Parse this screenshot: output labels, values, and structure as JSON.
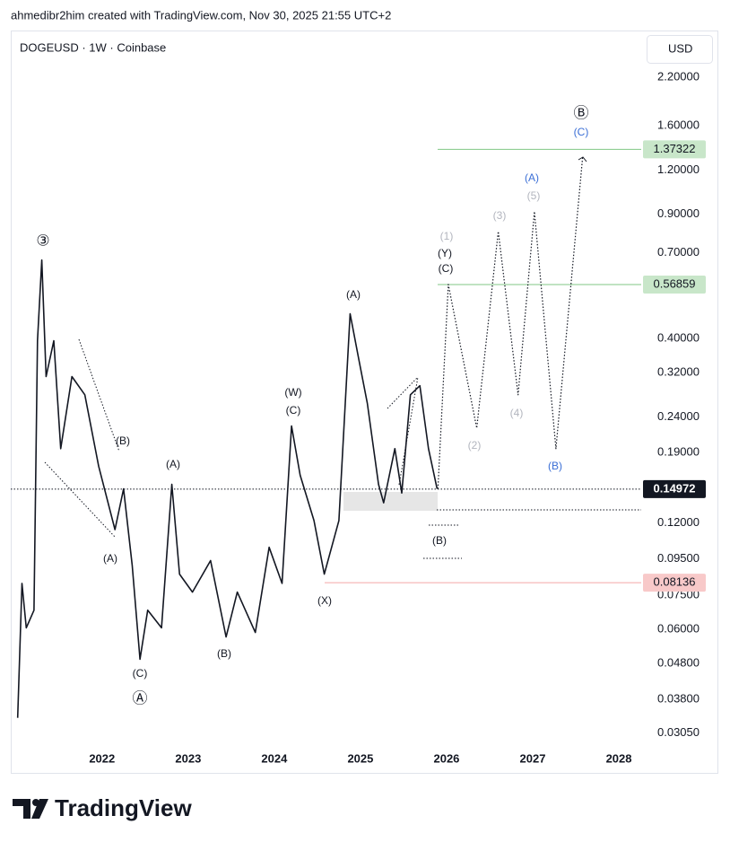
{
  "header": "ahmedibr2him created with TradingView.com, Nov 30, 2025 21:55 UTC+2",
  "brand": "TradingView",
  "chart_data": {
    "type": "line",
    "title": "DOGEUSD · 1W · Coinbase",
    "currency": "USD",
    "log_scale": true,
    "grid": false,
    "xlim": [
      2020.94,
      2028.26
    ],
    "ylim": [
      0.0234,
      2.98
    ],
    "xticks": [
      2022,
      2023,
      2024,
      2025,
      2026,
      2027,
      2028
    ],
    "yticks": [
      {
        "value": 2.2,
        "label": "2.20000"
      },
      {
        "value": 1.6,
        "label": "1.60000"
      },
      {
        "value": 1.2,
        "label": "1.20000"
      },
      {
        "value": 0.9,
        "label": "0.90000"
      },
      {
        "value": 0.7,
        "label": "0.70000"
      },
      {
        "value": 0.4,
        "label": "0.40000"
      },
      {
        "value": 0.32,
        "label": "0.32000"
      },
      {
        "value": 0.24,
        "label": "0.24000"
      },
      {
        "value": 0.19,
        "label": "0.19000"
      },
      {
        "value": 0.12,
        "label": "0.12000"
      },
      {
        "value": 0.095,
        "label": "0.09500"
      },
      {
        "value": 0.075,
        "label": "0.07500"
      },
      {
        "value": 0.06,
        "label": "0.06000"
      },
      {
        "value": 0.048,
        "label": "0.04800"
      },
      {
        "value": 0.038,
        "label": "0.03800"
      },
      {
        "value": 0.0305,
        "label": "0.03050"
      }
    ],
    "series": [
      {
        "color": "#131722",
        "style": "solid",
        "x": [
          2021.02,
          2021.07,
          2021.12,
          2021.21,
          2021.25,
          2021.3,
          2021.35,
          2021.44,
          2021.52,
          2021.65,
          2021.8,
          2021.96,
          2022.15,
          2022.25,
          2022.35,
          2022.44,
          2022.53,
          2022.69,
          2022.81,
          2022.9,
          2023.05,
          2023.26,
          2023.44,
          2023.57,
          2023.78,
          2023.94,
          2024.09,
          2024.2,
          2024.3,
          2024.46,
          2024.58,
          2024.75,
          2024.88,
          2024.98,
          2025.08,
          2025.21,
          2025.27,
          2025.4,
          2025.48,
          2025.58,
          2025.69,
          2025.79,
          2025.89
        ],
        "values": [
          0.0337,
          0.081,
          0.0606,
          0.068,
          0.394,
          0.667,
          0.312,
          0.394,
          0.195,
          0.312,
          0.277,
          0.174,
          0.115,
          0.15,
          0.0912,
          0.0494,
          0.068,
          0.0606,
          0.1545,
          0.086,
          0.0765,
          0.094,
          0.0571,
          0.0765,
          0.0588,
          0.1025,
          0.081,
          0.226,
          0.164,
          0.122,
          0.086,
          0.122,
          0.47,
          0.35,
          0.262,
          0.1545,
          0.137,
          0.195,
          0.146,
          0.277,
          0.294,
          0.195,
          0.15
        ]
      },
      {
        "color": "#131722",
        "style": "dotted",
        "x": [
          2025.9,
          2026.02,
          2026.35,
          2026.6,
          2026.83,
          2027.02,
          2027.27,
          2027.58
        ],
        "values": [
          0.15,
          0.569,
          0.223,
          0.804,
          0.277,
          0.915,
          0.195,
          1.307
        ]
      }
    ],
    "levels": [
      {
        "value": 1.37322,
        "color": "#81c784",
        "badge": "#c8e6c9",
        "text_color": "#131722"
      },
      {
        "value": 0.56859,
        "color": "#81c784",
        "badge": "#c8e6c9",
        "text_color": "#131722"
      },
      {
        "value": 0.14972,
        "color": "#131722",
        "badge": "#131722",
        "text_color": "#ffffff"
      },
      {
        "value": 0.08136,
        "color": "#f4a6a6",
        "badge": "#f8c9c9",
        "text_color": "#131722"
      }
    ],
    "annotations": [
      {
        "text": "③",
        "color": "#131722"
      },
      {
        "text": "(B)",
        "color": "#131722"
      },
      {
        "text": "(A)",
        "color": "#131722"
      },
      {
        "text": "(A)",
        "color": "#131722"
      },
      {
        "text": "(C)",
        "color": "#131722"
      },
      {
        "text": "Ⓐ",
        "color": "#131722"
      },
      {
        "text": "(B)",
        "color": "#131722"
      },
      {
        "text": "(W)",
        "color": "#131722"
      },
      {
        "text": "(C)",
        "color": "#131722"
      },
      {
        "text": "(X)",
        "color": "#131722"
      },
      {
        "text": "(A)",
        "color": "#131722"
      },
      {
        "text": "(1)",
        "color": "#b2b5be"
      },
      {
        "text": "(Y)",
        "color": "#131722"
      },
      {
        "text": "(C)",
        "color": "#131722"
      },
      {
        "text": "(3)",
        "color": "#b2b5be"
      },
      {
        "text": "(2)",
        "color": "#b2b5be"
      },
      {
        "text": "(4)",
        "color": "#b2b5be"
      },
      {
        "text": "(A)",
        "color": "#3b6fd6"
      },
      {
        "text": "(5)",
        "color": "#b2b5be"
      },
      {
        "text": "(B)",
        "color": "#3b6fd6"
      },
      {
        "text": "Ⓑ",
        "color": "#131722"
      },
      {
        "text": "(C)",
        "color": "#3b6fd6"
      },
      {
        "text": "(B)",
        "color": "#131722"
      }
    ]
  }
}
